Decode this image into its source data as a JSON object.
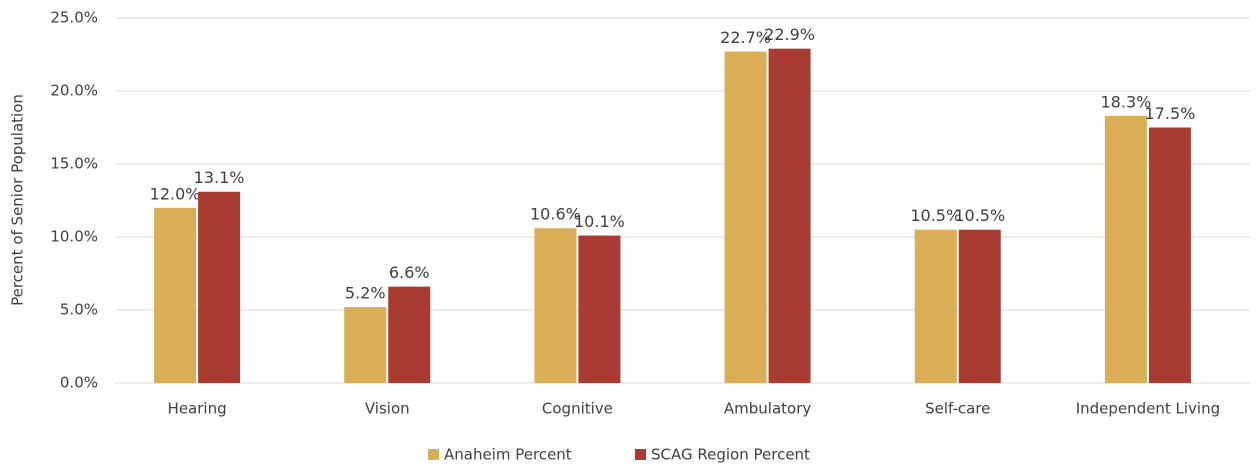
{
  "chart_data": {
    "type": "bar",
    "y_label": "Percent of Senior Population",
    "categories": [
      "Hearing",
      "Vision",
      "Cognitive",
      "Ambulatory",
      "Self-care",
      "Independent Living"
    ],
    "series": [
      {
        "name": "Anaheim Percent",
        "color": "#d9ae57",
        "values": [
          12.0,
          5.2,
          10.6,
          22.7,
          10.5,
          18.3
        ],
        "value_labels": [
          "12.0%",
          "5.2%",
          "10.6%",
          "22.7%",
          "10.5%",
          "18.3%"
        ]
      },
      {
        "name": "SCAG Region Percent",
        "color": "#a93c32",
        "values": [
          13.1,
          6.6,
          10.1,
          22.9,
          10.5,
          17.5
        ],
        "value_labels": [
          "13.1%",
          "6.6%",
          "10.1%",
          "22.9%",
          "10.5%",
          "17.5%"
        ]
      }
    ],
    "ylim": [
      0,
      25
    ],
    "yticks": [
      {
        "value": 0,
        "label": "0.0%"
      },
      {
        "value": 5,
        "label": "5.0%"
      },
      {
        "value": 10,
        "label": "10.0%"
      },
      {
        "value": 15,
        "label": "15.0%"
      },
      {
        "value": 20,
        "label": "20.0%"
      },
      {
        "value": 25,
        "label": "25.0%"
      }
    ],
    "grid": true,
    "legend": "bottom"
  }
}
